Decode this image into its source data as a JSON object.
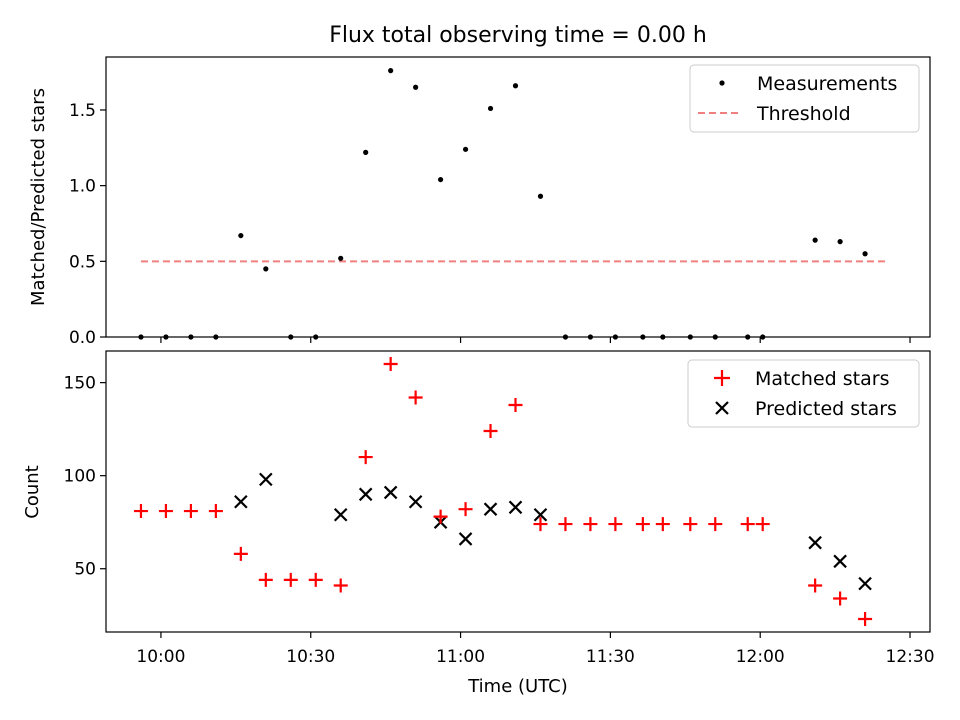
{
  "chart_data": [
    {
      "type": "scatter",
      "title": "Flux total observing time = 0.00 h",
      "xlabel": "",
      "ylabel": "Matched/Predicted stars",
      "ylim": [
        0,
        1.85
      ],
      "yticks": [
        0.0,
        0.5,
        1.0,
        1.5
      ],
      "ytick_labels": [
        "0.0",
        "0.5",
        "1.0",
        "1.5"
      ],
      "legend": {
        "position": "top-right",
        "entries": [
          "Measurements",
          "Threshold"
        ]
      },
      "series": [
        {
          "name": "Measurements",
          "color": "#000000",
          "x": [
            -4,
            1,
            6,
            11,
            16,
            21,
            26,
            31,
            36,
            41,
            46,
            51,
            56,
            61,
            66,
            71,
            76,
            81,
            86,
            91,
            96.5,
            100.5,
            106,
            111,
            117.5,
            120.5,
            131,
            136,
            141
          ],
          "values": [
            0,
            0,
            0,
            0,
            0.67,
            0.45,
            0,
            0,
            0.52,
            1.22,
            1.76,
            1.65,
            1.04,
            1.24,
            1.51,
            1.66,
            0.93,
            0,
            0,
            0,
            0,
            0,
            0,
            0,
            0,
            0,
            0.64,
            0.63,
            0.55
          ]
        },
        {
          "name": "Threshold",
          "color": "#f08080",
          "x": [
            -4,
            145
          ],
          "values": [
            0.5,
            0.5
          ]
        }
      ]
    },
    {
      "type": "scatter",
      "xlabel": "Time (UTC)",
      "ylabel": "Count",
      "ylim": [
        16,
        167
      ],
      "yticks": [
        50,
        100,
        150
      ],
      "ytick_labels": [
        "50",
        "100",
        "150"
      ],
      "categories": [
        "10:00",
        "10:30",
        "11:00",
        "11:30",
        "12:00",
        "12:30"
      ],
      "xticks": [
        0,
        30,
        60,
        90,
        120,
        150
      ],
      "xlim": [
        -11,
        154
      ],
      "legend": {
        "position": "top-right",
        "entries": [
          "Matched stars",
          "Predicted stars"
        ]
      },
      "series": [
        {
          "name": "Matched stars",
          "marker": "+",
          "color": "#ff0000",
          "x": [
            -4,
            1,
            6,
            11,
            16,
            21,
            26,
            31,
            36,
            41,
            46,
            51,
            56,
            61,
            66,
            71,
            76,
            81,
            86,
            91,
            96.5,
            100.5,
            106,
            111,
            117.5,
            120.5,
            131,
            136,
            141
          ],
          "values": [
            81,
            81,
            81,
            81,
            58,
            44,
            44,
            44,
            41,
            110,
            160,
            142,
            78,
            82,
            124,
            138,
            74,
            74,
            74,
            74,
            74,
            74,
            74,
            74,
            74,
            74,
            41,
            34,
            23
          ]
        },
        {
          "name": "Predicted stars",
          "marker": "x",
          "color": "#000000",
          "x": [
            16,
            21,
            36,
            41,
            46,
            51,
            56,
            61,
            66,
            71,
            76,
            131,
            136,
            141
          ],
          "values": [
            86,
            98,
            79,
            90,
            91,
            86,
            75,
            66,
            82,
            83,
            79,
            64,
            54,
            42
          ]
        }
      ]
    }
  ]
}
